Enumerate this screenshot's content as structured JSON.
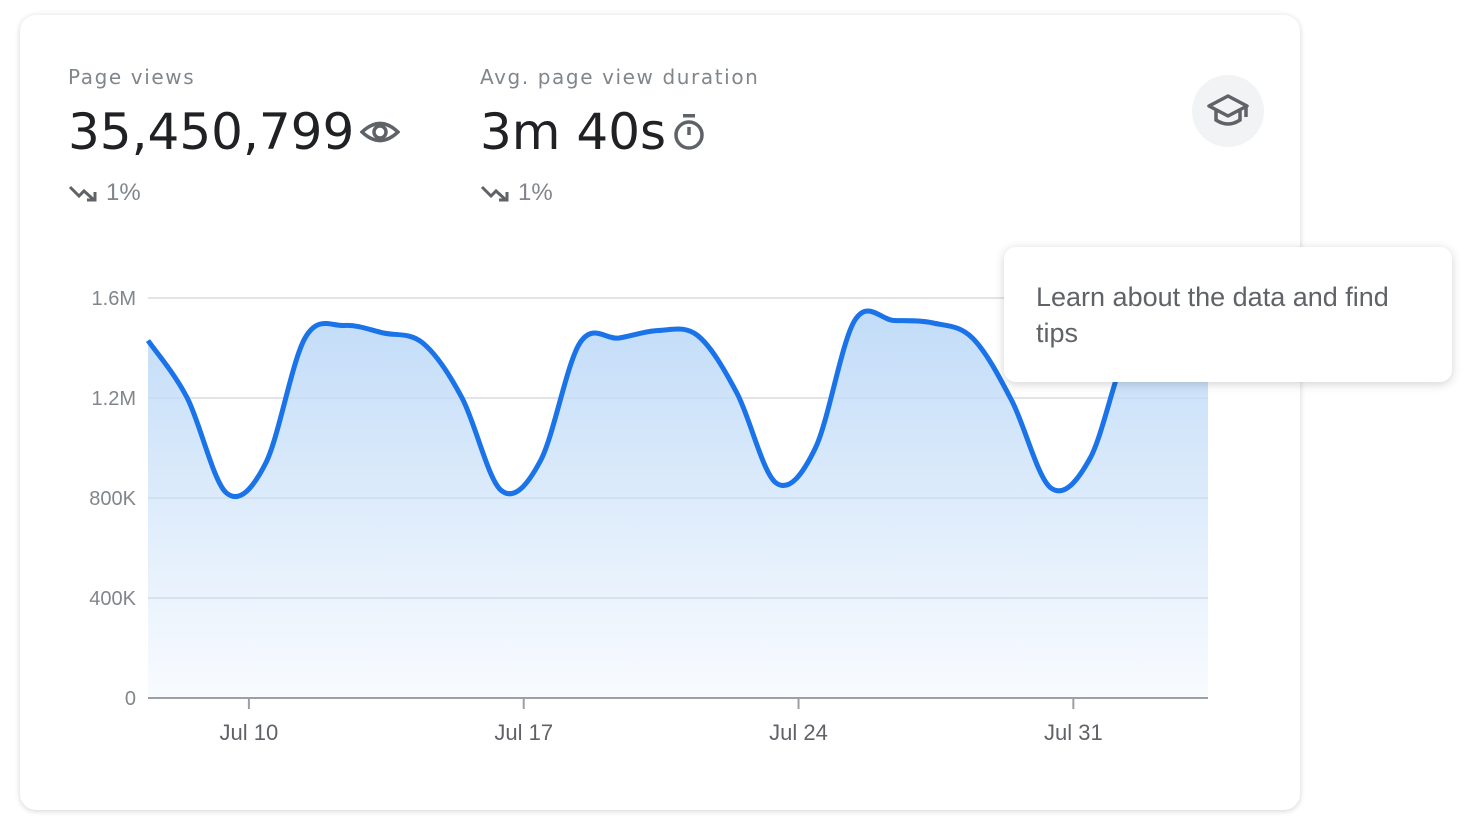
{
  "metrics": [
    {
      "label": "Page views",
      "value": "35,450,799",
      "icon": "eye-icon",
      "change": "1%",
      "trend_icon": "trending-down-icon"
    },
    {
      "label": "Avg. page view duration",
      "value": "3m 40s",
      "icon": "timer-icon",
      "change": "1%",
      "trend_icon": "trending-down-icon"
    }
  ],
  "learn_button": {
    "icon": "graduation-cap-icon"
  },
  "tooltip": {
    "text": "Learn about the data and find tips"
  },
  "colors": {
    "line": "#1a73e8",
    "fill": "#c6dffa",
    "grid": "#dadce0",
    "text": "#80868b"
  },
  "chart_data": {
    "type": "area",
    "x": [
      "Jul 7",
      "Jul 8",
      "Jul 9",
      "Jul 10",
      "Jul 11",
      "Jul 12",
      "Jul 13",
      "Jul 14",
      "Jul 15",
      "Jul 16",
      "Jul 17",
      "Jul 18",
      "Jul 19",
      "Jul 20",
      "Jul 21",
      "Jul 22",
      "Jul 23",
      "Jul 24",
      "Jul 25",
      "Jul 26",
      "Jul 27",
      "Jul 28",
      "Jul 29",
      "Jul 30",
      "Jul 31",
      "Aug 1",
      "Aug 2",
      "Aug 3"
    ],
    "values": [
      1430000,
      1200000,
      820000,
      940000,
      1440000,
      1490000,
      1460000,
      1420000,
      1200000,
      830000,
      950000,
      1420000,
      1440000,
      1470000,
      1450000,
      1220000,
      860000,
      1000000,
      1510000,
      1510000,
      1500000,
      1440000,
      1190000,
      840000,
      960000,
      1410000,
      1450000,
      1470000
    ],
    "ylim": [
      0,
      1600000
    ],
    "yticks": [
      0,
      400000,
      800000,
      1200000,
      1600000
    ],
    "ytick_labels": [
      "0",
      "400K",
      "800K",
      "1.2M",
      "1.6M"
    ],
    "xtick_labels": [
      "Jul 10",
      "Jul 17",
      "Jul 24",
      "Jul 31"
    ],
    "grid": true
  }
}
